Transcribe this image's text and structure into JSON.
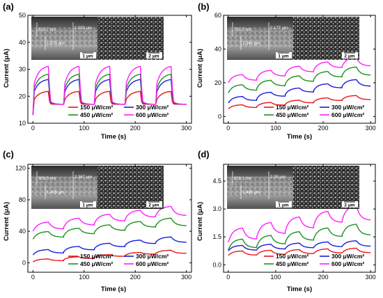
{
  "figure": {
    "legend_labels": [
      "150 μW/cm²",
      "300 μW/cm²",
      "450 μW/cm²",
      "600 μW/cm²"
    ],
    "colors": {
      "150": "#e8141b",
      "300": "#1a1adc",
      "450": "#1f8f1f",
      "600": "#ff1dff"
    }
  },
  "chart_data": [
    {
      "panel": "(a)",
      "type": "line",
      "xlabel": "Time (s)",
      "ylabel": "Current (μA)",
      "xlim": [
        -10,
        310
      ],
      "ylim": [
        10,
        50
      ],
      "xticks": [
        0,
        100,
        200,
        300
      ],
      "yticks": [
        10,
        20,
        30,
        40,
        50
      ],
      "shape": "square",
      "series": [
        {
          "name": "150 μW/cm²",
          "color": "#e8141b",
          "base": 13,
          "on": 18.0,
          "sat": 22.0,
          "off": 17.0
        },
        {
          "name": "300 μW/cm²",
          "color": "#1a1adc",
          "base": 13,
          "on": 20.5,
          "sat": 26.5,
          "off": 17.0
        },
        {
          "name": "450 μW/cm²",
          "color": "#1f8f1f",
          "base": 13,
          "on": 21.5,
          "sat": 28.5,
          "off": 17.0
        },
        {
          "name": "600 μW/cm²",
          "color": "#ff1dff",
          "base": 13,
          "on": 23.0,
          "sat": 31.5,
          "off": 17.0
        }
      ],
      "inset": {
        "labels": [
          "619.7 nm",
          "2.093 μm",
          "1.373 μm"
        ],
        "scale_bars": [
          "1 μm",
          "2 μm"
        ]
      }
    },
    {
      "panel": "(b)",
      "type": "line",
      "xlabel": "Time (s)",
      "ylabel": "Current (μA)",
      "xlim": [
        -10,
        310
      ],
      "ylim": [
        -4,
        60
      ],
      "xticks": [
        0,
        100,
        200,
        300
      ],
      "yticks": [
        0,
        20,
        40,
        60
      ],
      "shape": "saw",
      "series": [
        {
          "name": "150 μW/cm²",
          "color": "#e8141b",
          "start": 4.5,
          "end": 10,
          "amp": 2.5
        },
        {
          "name": "300 μW/cm²",
          "color": "#1a1adc",
          "start": 8,
          "end": 18,
          "amp": 4
        },
        {
          "name": "450 μW/cm²",
          "color": "#1f8f1f",
          "start": 14,
          "end": 24.5,
          "amp": 5
        },
        {
          "name": "600 μW/cm²",
          "color": "#ff1dff",
          "start": 20,
          "end": 30,
          "amp": 5
        }
      ],
      "inset": {
        "labels": [
          "781.5 nm",
          "2.177 μm",
          "1.340 μm"
        ],
        "scale_bars": [
          "1 μm",
          "2 μm"
        ]
      }
    },
    {
      "panel": "(c)",
      "type": "line",
      "xlabel": "Time (s)",
      "ylabel": "Current (μA)",
      "xlim": [
        -10,
        310
      ],
      "ylim": [
        -12,
        125
      ],
      "xticks": [
        0,
        100,
        200,
        300
      ],
      "yticks": [
        0,
        40,
        80,
        120
      ],
      "shape": "saw",
      "series": [
        {
          "name": "150 μW/cm²",
          "color": "#e8141b",
          "start": 1,
          "end": 12,
          "amp": 4
        },
        {
          "name": "300 μW/cm²",
          "color": "#1a1adc",
          "start": 10,
          "end": 26,
          "amp": 7
        },
        {
          "name": "450 μW/cm²",
          "color": "#1f8f1f",
          "start": 30,
          "end": 47,
          "amp": 10
        },
        {
          "name": "600 μW/cm²",
          "color": "#ff1dff",
          "start": 40,
          "end": 60,
          "amp": 12
        }
      ],
      "inset": {
        "labels": [
          "909.9 nm",
          "2.367 μm",
          "1.435 μm"
        ],
        "scale_bars": [
          "1 μm",
          "2 μm"
        ]
      }
    },
    {
      "panel": "(d)",
      "type": "line",
      "xlabel": "Time (s)",
      "ylabel": "Current (μA)",
      "xlim": [
        -10,
        310
      ],
      "ylim": [
        -0.4,
        5.4
      ],
      "xticks": [
        0,
        100,
        200,
        300
      ],
      "yticks": [
        0.0,
        1.5,
        3.0,
        4.5
      ],
      "shape": "saw",
      "series": [
        {
          "name": "150 μW/cm²",
          "color": "#e8141b",
          "start": 0.5,
          "end": 0.65,
          "amp": 0.25
        },
        {
          "name": "300 μW/cm²",
          "color": "#1a1adc",
          "start": 0.75,
          "end": 1.0,
          "amp": 0.3
        },
        {
          "name": "450 μW/cm²",
          "color": "#1f8f1f",
          "start": 0.8,
          "end": 1.6,
          "amp": 0.6
        },
        {
          "name": "600 μW/cm²",
          "color": "#ff1dff",
          "start": 1.2,
          "end": 2.4,
          "amp": 0.8
        }
      ],
      "inset": {
        "labels": [
          "628.1 nm",
          "2.09 μm",
          "1.485 μm"
        ],
        "scale_bars": [
          "1 μm",
          "2 μm"
        ]
      }
    }
  ]
}
